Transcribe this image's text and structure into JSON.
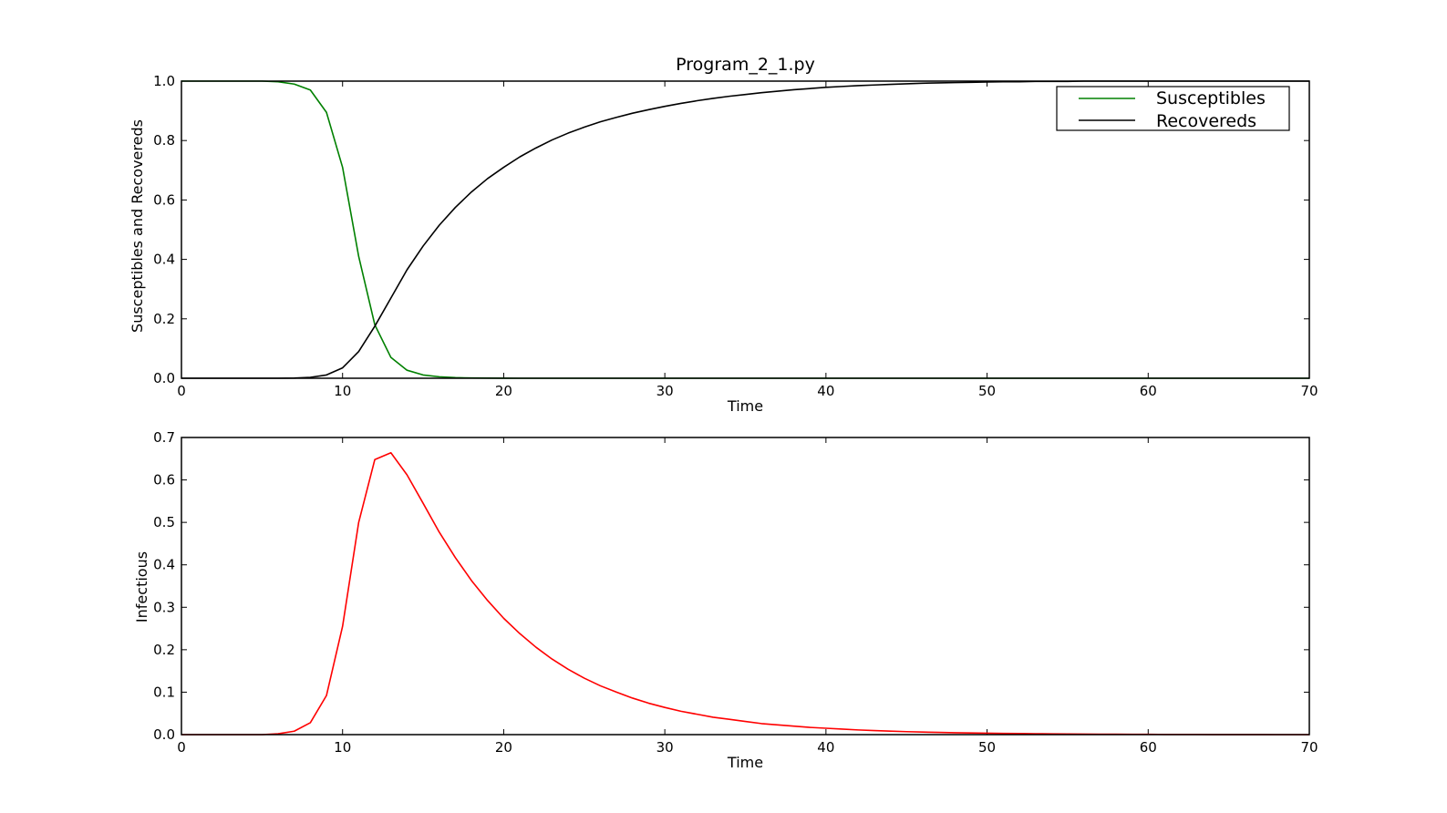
{
  "chart_data": [
    {
      "type": "line",
      "title": "Program_2_1.py",
      "xlabel": "Time",
      "ylabel": "Susceptibles and Recovereds",
      "xlim": [
        0,
        70
      ],
      "ylim": [
        0,
        1.0
      ],
      "xticks": [
        "0",
        "10",
        "20",
        "30",
        "40",
        "50",
        "60",
        "70"
      ],
      "yticks": [
        "0.0",
        "0.2",
        "0.4",
        "0.6",
        "0.8",
        "1.0"
      ],
      "legend_position": "top-right",
      "grid": false,
      "x": [
        0,
        1,
        2,
        3,
        4,
        5,
        6,
        7,
        8,
        9,
        10,
        11,
        12,
        13,
        14,
        15,
        16,
        17,
        18,
        19,
        20,
        21,
        22,
        23,
        24,
        25,
        26,
        27,
        28,
        29,
        30,
        31,
        32,
        33,
        34,
        35,
        36,
        37,
        38,
        39,
        40,
        41,
        42,
        43,
        44,
        45,
        46,
        47,
        48,
        49,
        50,
        51,
        52,
        53,
        54,
        55,
        56,
        57,
        58,
        59,
        60,
        61,
        62,
        63,
        64,
        65,
        66,
        67,
        68,
        69,
        70
      ],
      "series": [
        {
          "name": "Susceptibles",
          "color": "#008000",
          "values": [
            1.0,
            1.0,
            1.0,
            1.0,
            1.0,
            1.0,
            0.998,
            0.99,
            0.97,
            0.895,
            0.71,
            0.41,
            0.18,
            0.07,
            0.027,
            0.011,
            0.005,
            0.002,
            0.001,
            0.0005,
            0.0002,
            0,
            0,
            0,
            0,
            0,
            0,
            0,
            0,
            0,
            0,
            0,
            0,
            0,
            0,
            0,
            0,
            0,
            0,
            0,
            0,
            0,
            0,
            0,
            0,
            0,
            0,
            0,
            0,
            0,
            0,
            0,
            0,
            0,
            0,
            0,
            0,
            0,
            0,
            0,
            0,
            0,
            0,
            0,
            0,
            0,
            0,
            0,
            0,
            0,
            0
          ]
        },
        {
          "name": "Recovereds",
          "color": "#000000",
          "values": [
            0,
            0,
            0,
            0,
            0,
            0,
            0,
            0.0005,
            0.003,
            0.011,
            0.035,
            0.09,
            0.175,
            0.27,
            0.365,
            0.445,
            0.515,
            0.575,
            0.627,
            0.672,
            0.71,
            0.745,
            0.775,
            0.802,
            0.825,
            0.845,
            0.863,
            0.878,
            0.892,
            0.904,
            0.915,
            0.925,
            0.934,
            0.942,
            0.949,
            0.955,
            0.961,
            0.966,
            0.971,
            0.975,
            0.979,
            0.982,
            0.985,
            0.987,
            0.989,
            0.991,
            0.993,
            0.994,
            0.995,
            0.996,
            0.997,
            0.998,
            0.998,
            0.999,
            0.999,
            0.999,
            1.0,
            1.0,
            1.0,
            1.0,
            1.0,
            1.0,
            1.0,
            1.0,
            1.0,
            1.0,
            1.0,
            1.0,
            1.0,
            1.0,
            1.0
          ]
        }
      ]
    },
    {
      "type": "line",
      "title": "",
      "xlabel": "Time",
      "ylabel": "Infectious",
      "xlim": [
        0,
        70
      ],
      "ylim": [
        0,
        0.7
      ],
      "xticks": [
        "0",
        "10",
        "20",
        "30",
        "40",
        "50",
        "60",
        "70"
      ],
      "yticks": [
        "0.0",
        "0.1",
        "0.2",
        "0.3",
        "0.4",
        "0.5",
        "0.6",
        "0.7"
      ],
      "grid": false,
      "x": [
        0,
        1,
        2,
        3,
        4,
        5,
        6,
        7,
        8,
        9,
        10,
        11,
        12,
        13,
        14,
        15,
        16,
        17,
        18,
        19,
        20,
        21,
        22,
        23,
        24,
        25,
        26,
        27,
        28,
        29,
        30,
        31,
        32,
        33,
        34,
        35,
        36,
        37,
        38,
        39,
        40,
        41,
        42,
        43,
        44,
        45,
        46,
        47,
        48,
        49,
        50,
        51,
        52,
        53,
        54,
        55,
        56,
        57,
        58,
        59,
        60,
        61,
        62,
        63,
        64,
        65,
        66,
        67,
        68,
        69,
        70
      ],
      "series": [
        {
          "name": "Infectious",
          "color": "#ff0000",
          "values": [
            0,
            0,
            0,
            0,
            0,
            0,
            0.002,
            0.008,
            0.028,
            0.092,
            0.255,
            0.5,
            0.648,
            0.664,
            0.612,
            0.545,
            0.477,
            0.417,
            0.363,
            0.316,
            0.274,
            0.238,
            0.206,
            0.178,
            0.154,
            0.133,
            0.115,
            0.1,
            0.086,
            0.074,
            0.064,
            0.055,
            0.048,
            0.041,
            0.036,
            0.031,
            0.026,
            0.023,
            0.02,
            0.017,
            0.015,
            0.013,
            0.011,
            0.0095,
            0.0082,
            0.007,
            0.006,
            0.0052,
            0.0045,
            0.0039,
            0.0034,
            0.0029,
            0.0025,
            0.0021,
            0.0018,
            0.0015,
            0.0013,
            0.0011,
            0.0009,
            0.0007,
            0.0006,
            0.0005,
            0.0004,
            0.0003,
            0.0002,
            0.0002,
            0.0001,
            0.0001,
            0,
            0,
            0
          ]
        }
      ]
    }
  ]
}
